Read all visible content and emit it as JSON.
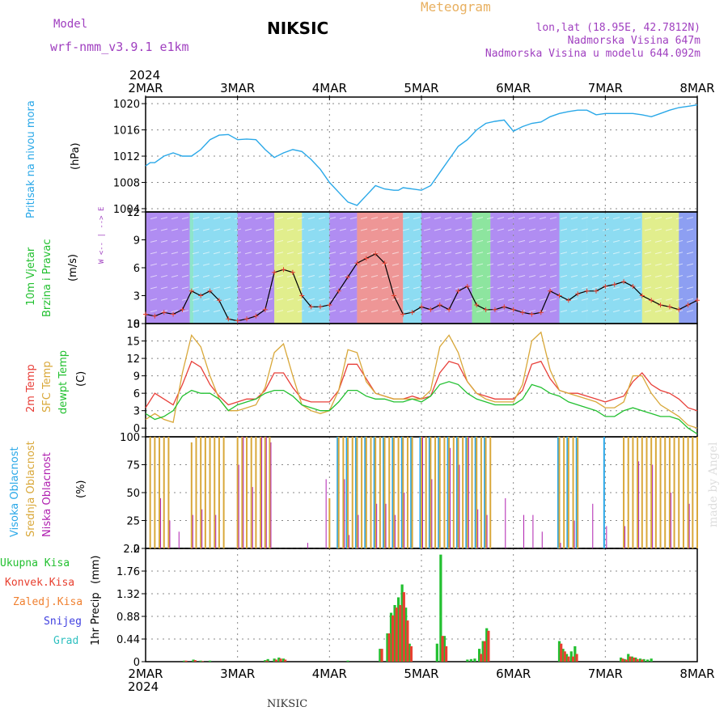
{
  "header": {
    "model_label": "Model",
    "model_name": "wrf-nmm_v3.9.1 e1km",
    "station": "NIKSIC",
    "meteogram": "Meteogram",
    "lonlat": "lon,lat (18.95E, 42.7812N)",
    "elevation": "Nadmorska Visina 647m",
    "model_elevation": "Nadmorska Visina u modelu 644.092m",
    "year_top": "2024",
    "year_bottom": "2024",
    "footer_station": "NIKSIC",
    "watermark": "made by Angel"
  },
  "colors": {
    "pressure": "#2aa8e8",
    "temp2m": "#e8403a",
    "sfc": "#d9a83a",
    "dewpt": "#22c030",
    "high_cloud": "#2aa8e8",
    "mid_cloud": "#d9a83a",
    "low_cloud": "#b020b0",
    "total_precip": "#22c030",
    "conv_precip": "#e84030",
    "frz_precip": "#f08030",
    "snow": "#4040e0",
    "graupel": "#30c0c0",
    "purple": "#a040c0",
    "orange": "#e8b060"
  },
  "x_labels": [
    "2MAR",
    "3MAR",
    "4MAR",
    "5MAR",
    "6MAR",
    "7MAR",
    "8MAR"
  ],
  "chart_data": [
    {
      "type": "line",
      "ylabel_a": "Pritisak na nivou mora",
      "ylabel_b": "(hPa)",
      "yticks": [
        "1004",
        "1008",
        "1012",
        "1016",
        "1020"
      ],
      "ylim": [
        1003.5,
        1021
      ],
      "x_days": [
        0,
        0.05,
        0.1,
        0.2,
        0.3,
        0.4,
        0.5,
        0.6,
        0.7,
        0.8,
        0.9,
        1.0,
        1.1,
        1.2,
        1.3,
        1.4,
        1.5,
        1.6,
        1.7,
        1.8,
        1.9,
        2.0,
        2.1,
        2.2,
        2.3,
        2.4,
        2.5,
        2.6,
        2.7,
        2.75,
        2.8,
        2.9,
        3.0,
        3.1,
        3.2,
        3.3,
        3.4,
        3.5,
        3.6,
        3.7,
        3.8,
        3.9,
        4.0,
        4.1,
        4.2,
        4.3,
        4.4,
        4.5,
        4.6,
        4.7,
        4.8,
        4.9,
        5.0,
        5.1,
        5.2,
        5.3,
        5.4,
        5.5,
        5.6,
        5.7,
        5.8,
        5.9,
        6.0
      ],
      "values": [
        1010.5,
        1011,
        1011,
        1012,
        1012.5,
        1012,
        1012,
        1013,
        1014.5,
        1015.2,
        1015.3,
        1014.5,
        1014.6,
        1014.5,
        1013,
        1011.8,
        1012.5,
        1013,
        1012.7,
        1011.5,
        1010,
        1008,
        1006.5,
        1005,
        1004.5,
        1006,
        1007.5,
        1007,
        1006.8,
        1006.8,
        1007.2,
        1007,
        1006.8,
        1007.5,
        1009.5,
        1011.5,
        1013.5,
        1014.5,
        1016,
        1017,
        1017.3,
        1017.5,
        1015.8,
        1016.5,
        1017,
        1017.2,
        1018,
        1018.5,
        1018.8,
        1019,
        1019,
        1018.3,
        1018.5,
        1018.5,
        1018.5,
        1018.5,
        1018.3,
        1018,
        1018.5,
        1019,
        1019.4,
        1019.6,
        1019.8
      ]
    },
    {
      "type": "line",
      "ylabel_a": "10m Vjetar",
      "ylabel_b": "Brzina i Pravac",
      "ylabel_c": "(m/s)",
      "compass": "W <-- | --> E",
      "yticks": [
        "0",
        "3",
        "6",
        "9",
        "12"
      ],
      "ylim": [
        0,
        12
      ],
      "x_days": [
        0,
        0.1,
        0.2,
        0.3,
        0.4,
        0.5,
        0.6,
        0.7,
        0.8,
        0.9,
        1.0,
        1.1,
        1.2,
        1.3,
        1.4,
        1.5,
        1.6,
        1.7,
        1.8,
        1.9,
        2.0,
        2.1,
        2.2,
        2.3,
        2.4,
        2.5,
        2.6,
        2.7,
        2.8,
        2.9,
        3.0,
        3.1,
        3.2,
        3.3,
        3.4,
        3.5,
        3.6,
        3.7,
        3.8,
        3.9,
        4.0,
        4.1,
        4.2,
        4.3,
        4.4,
        4.5,
        4.6,
        4.7,
        4.8,
        4.9,
        5.0,
        5.1,
        5.2,
        5.3,
        5.4,
        5.5,
        5.6,
        5.7,
        5.8,
        5.9,
        6.0
      ],
      "values": [
        1.0,
        0.8,
        1.2,
        1.0,
        1.5,
        3.5,
        3.0,
        3.5,
        2.5,
        0.5,
        0.3,
        0.5,
        0.8,
        1.5,
        5.5,
        5.8,
        5.5,
        3.0,
        1.8,
        1.8,
        2.0,
        3.5,
        5.0,
        6.5,
        7.0,
        7.5,
        6.5,
        3.0,
        1.0,
        1.2,
        1.8,
        1.5,
        2.0,
        1.5,
        3.5,
        4.0,
        2.0,
        1.5,
        1.5,
        1.8,
        1.5,
        1.2,
        1.0,
        1.2,
        3.5,
        3.0,
        2.5,
        3.2,
        3.5,
        3.5,
        4.0,
        4.2,
        4.5,
        4.0,
        3.0,
        2.5,
        2.0,
        1.8,
        1.5,
        2.0,
        2.5
      ]
    },
    {
      "type": "line",
      "ylabel_a": "2m Temp",
      "ylabel_b": "SFC Temp",
      "ylabel_c": "dewpt Temp",
      "ylabel_d": "(C)",
      "yticks": [
        "0",
        "3",
        "6",
        "9",
        "12",
        "15",
        "18"
      ],
      "ylim": [
        -1.5,
        18
      ],
      "x_days": [
        0,
        0.1,
        0.2,
        0.3,
        0.4,
        0.5,
        0.6,
        0.7,
        0.8,
        0.9,
        1.0,
        1.1,
        1.2,
        1.3,
        1.4,
        1.5,
        1.6,
        1.7,
        1.8,
        1.9,
        2.0,
        2.1,
        2.2,
        2.3,
        2.4,
        2.5,
        2.6,
        2.7,
        2.8,
        2.9,
        3.0,
        3.1,
        3.2,
        3.3,
        3.4,
        3.5,
        3.6,
        3.7,
        3.8,
        3.9,
        4.0,
        4.1,
        4.2,
        4.3,
        4.4,
        4.5,
        4.6,
        4.7,
        4.8,
        4.9,
        5.0,
        5.1,
        5.2,
        5.3,
        5.4,
        5.5,
        5.6,
        5.7,
        5.8,
        5.9,
        6.0
      ],
      "series": [
        {
          "name": "2m Temp",
          "values": [
            3.5,
            6.0,
            5.0,
            4.0,
            7.5,
            11.5,
            10.5,
            7.5,
            5.5,
            4.0,
            4.5,
            5.0,
            5.0,
            6.5,
            9.5,
            9.5,
            7.0,
            5.0,
            4.5,
            4.5,
            4.5,
            6.5,
            11.0,
            11.0,
            8.5,
            6.0,
            5.5,
            5.0,
            5.0,
            5.5,
            5.0,
            5.5,
            9.5,
            11.5,
            11.0,
            8.0,
            6.0,
            5.5,
            5.0,
            5.0,
            5.0,
            6.5,
            11.0,
            11.5,
            8.5,
            6.5,
            6.0,
            6.0,
            5.5,
            5.0,
            4.5,
            5.0,
            5.5,
            8.0,
            9.5,
            7.5,
            6.5,
            6.0,
            5.0,
            3.5,
            3.0
          ]
        },
        {
          "name": "SFC Temp",
          "values": [
            1.5,
            2.5,
            1.5,
            1.0,
            9.5,
            16.0,
            14.0,
            9.0,
            5.0,
            3.0,
            3.0,
            3.5,
            4.0,
            7.0,
            13.0,
            14.5,
            9.0,
            4.0,
            3.0,
            2.5,
            3.0,
            6.5,
            13.5,
            13.0,
            8.0,
            6.0,
            5.5,
            5.0,
            5.0,
            5.0,
            5.0,
            6.5,
            14.0,
            16.0,
            13.0,
            8.0,
            6.0,
            5.0,
            4.5,
            4.5,
            4.5,
            7.5,
            15.0,
            16.5,
            10.0,
            6.5,
            6.0,
            5.5,
            5.0,
            4.5,
            3.5,
            3.5,
            4.5,
            9.0,
            9.0,
            6.0,
            4.0,
            3.0,
            2.0,
            0.5,
            0.0
          ]
        },
        {
          "name": "dewpt Temp",
          "values": [
            2.5,
            1.5,
            2.0,
            3.0,
            5.5,
            6.5,
            6.0,
            6.0,
            5.0,
            3.0,
            4.0,
            4.5,
            5.0,
            6.0,
            6.5,
            6.5,
            5.5,
            4.0,
            3.5,
            3.0,
            3.0,
            4.5,
            6.5,
            6.5,
            5.5,
            5.0,
            5.0,
            4.5,
            4.5,
            5.0,
            4.5,
            5.5,
            7.5,
            8.0,
            7.5,
            6.0,
            5.0,
            4.5,
            4.0,
            4.0,
            4.0,
            5.0,
            7.5,
            7.0,
            6.0,
            5.5,
            4.5,
            4.0,
            3.5,
            3.0,
            2.0,
            2.0,
            3.0,
            3.5,
            3.0,
            2.5,
            2.0,
            2.0,
            1.5,
            0.0,
            -1.0
          ]
        }
      ]
    },
    {
      "type": "bar",
      "ylabel_a": "Visoka Oblacnost",
      "ylabel_b": "Srednja Oblacnost",
      "ylabel_c": "Niska Oblacnost",
      "ylabel_d": "(%)",
      "yticks": [
        "0",
        "25",
        "50",
        "75",
        "100"
      ],
      "ylim": [
        0,
        100
      ],
      "series": [
        {
          "name": "Visoka Oblacnost",
          "x_days": [
            2.1,
            2.2,
            2.3,
            2.4,
            2.5,
            2.6,
            2.7,
            2.8,
            2.9,
            3.0,
            3.1,
            3.2,
            3.3,
            3.4,
            3.5,
            3.6,
            3.7,
            4.5,
            4.6,
            4.7,
            5.0
          ],
          "values": [
            100,
            100,
            100,
            100,
            100,
            100,
            100,
            100,
            100,
            100,
            100,
            100,
            100,
            100,
            100,
            100,
            100,
            100,
            100,
            100,
            100
          ]
        },
        {
          "name": "Srednja Oblacnost",
          "x_days": [
            0.05,
            0.1,
            0.15,
            0.2,
            0.25,
            0.5,
            0.55,
            0.6,
            0.65,
            0.7,
            0.75,
            0.8,
            0.85,
            1.0,
            1.05,
            1.1,
            1.15,
            1.2,
            1.25,
            1.3,
            1.35,
            2.0,
            2.1,
            2.15,
            2.2,
            2.25,
            2.3,
            2.35,
            2.4,
            2.45,
            2.5,
            2.55,
            2.6,
            2.65,
            2.7,
            2.75,
            2.8,
            2.85,
            2.9,
            3.0,
            3.05,
            3.1,
            3.15,
            3.2,
            3.25,
            3.3,
            3.35,
            3.4,
            3.45,
            3.5,
            3.55,
            3.6,
            3.65,
            3.7,
            3.75,
            4.5,
            4.55,
            4.6,
            4.65,
            4.7,
            5.2,
            5.25,
            5.3,
            5.35,
            5.4,
            5.45,
            5.5,
            5.55,
            5.6,
            5.65,
            5.7,
            5.75,
            5.8,
            5.85,
            5.9,
            5.95,
            6.0
          ],
          "values": [
            100,
            100,
            100,
            100,
            100,
            95,
            100,
            100,
            100,
            100,
            100,
            100,
            100,
            100,
            100,
            100,
            100,
            100,
            100,
            100,
            100,
            45,
            100,
            100,
            100,
            100,
            100,
            100,
            100,
            100,
            100,
            100,
            100,
            100,
            100,
            100,
            100,
            100,
            100,
            100,
            100,
            100,
            100,
            100,
            100,
            100,
            100,
            100,
            100,
            100,
            100,
            100,
            100,
            100,
            100,
            100,
            100,
            100,
            100,
            100,
            100,
            100,
            100,
            100,
            100,
            100,
            100,
            100,
            100,
            100,
            100,
            100,
            100,
            100,
            100,
            100,
            100
          ]
        },
        {
          "name": "Niska Oblacnost",
          "x_days": [
            0.15,
            0.25,
            0.35,
            0.5,
            0.6,
            0.75,
            1.0,
            1.05,
            1.15,
            1.25,
            1.3,
            1.35,
            1.75,
            1.95,
            2.15,
            2.2,
            2.3,
            2.5,
            2.6,
            2.7,
            2.8,
            3.0,
            3.1,
            3.3,
            3.4,
            3.5,
            3.6,
            3.7,
            3.9,
            4.1,
            4.2,
            4.3,
            4.5,
            4.65,
            4.85,
            5.0,
            5.2,
            5.35,
            5.5,
            5.7,
            5.9
          ],
          "values": [
            45,
            25,
            15,
            30,
            35,
            30,
            75,
            100,
            55,
            100,
            100,
            95,
            5,
            62,
            62,
            12,
            30,
            40,
            40,
            30,
            50,
            100,
            62,
            90,
            75,
            100,
            35,
            30,
            45,
            30,
            30,
            15,
            5,
            25,
            40,
            20,
            20,
            78,
            75,
            50,
            40
          ]
        }
      ]
    },
    {
      "type": "bar",
      "ylabel_a": "1hr Precip",
      "ylabel_b": "(mm)",
      "yticks": [
        "0",
        "0.44",
        "0.88",
        "1.32",
        "1.76",
        "2.2"
      ],
      "ylim": [
        0,
        2.2
      ],
      "legend": [
        "Ukupna Kisa",
        "Konvek.Kisa",
        "Zaledj.Kisa",
        "Snijeg",
        "Grad"
      ],
      "series": [
        {
          "name": "Ukupna Kisa",
          "x_days": [
            0.42,
            0.52,
            0.6,
            0.7,
            1.3,
            1.33,
            1.4,
            1.45,
            1.5,
            2.2,
            2.55,
            2.63,
            2.67,
            2.71,
            2.75,
            2.79,
            2.83,
            2.87,
            3.17,
            3.21,
            3.25,
            3.5,
            3.54,
            3.58,
            3.63,
            3.67,
            3.71,
            4.5,
            4.54,
            4.58,
            4.63,
            4.67,
            5.17,
            5.21,
            5.25,
            5.29,
            5.33,
            5.38,
            5.42,
            5.46,
            5.5
          ],
          "values": [
            0.02,
            0.04,
            0.02,
            0.02,
            0.03,
            0.05,
            0.06,
            0.08,
            0.06,
            0.02,
            0.25,
            0.55,
            0.95,
            1.1,
            1.25,
            1.5,
            1.05,
            0.35,
            0.35,
            2.08,
            0.5,
            0.04,
            0.05,
            0.06,
            0.25,
            0.4,
            0.65,
            0.4,
            0.25,
            0.15,
            0.2,
            0.3,
            0.08,
            0.05,
            0.15,
            0.1,
            0.08,
            0.06,
            0.05,
            0.04,
            0.06
          ]
        },
        {
          "name": "Konvek.Kisa",
          "x_days": [
            0.42,
            0.52,
            0.6,
            1.3,
            1.4,
            1.45,
            1.5,
            2.55,
            2.63,
            2.67,
            2.71,
            2.75,
            2.79,
            2.83,
            2.87,
            3.21,
            3.25,
            3.63,
            3.67,
            3.71,
            4.5,
            4.54,
            4.58,
            4.63,
            4.67,
            5.17,
            5.21,
            5.25,
            5.29,
            5.33,
            5.38
          ],
          "values": [
            0.02,
            0.03,
            0.01,
            0.02,
            0.04,
            0.06,
            0.04,
            0.25,
            0.55,
            0.9,
            1.05,
            1.1,
            1.35,
            0.8,
            0.3,
            0.5,
            0.3,
            0.15,
            0.4,
            0.6,
            0.35,
            0.2,
            0.1,
            0.1,
            0.15,
            0.06,
            0.04,
            0.1,
            0.08,
            0.05,
            0.04
          ]
        }
      ]
    }
  ]
}
